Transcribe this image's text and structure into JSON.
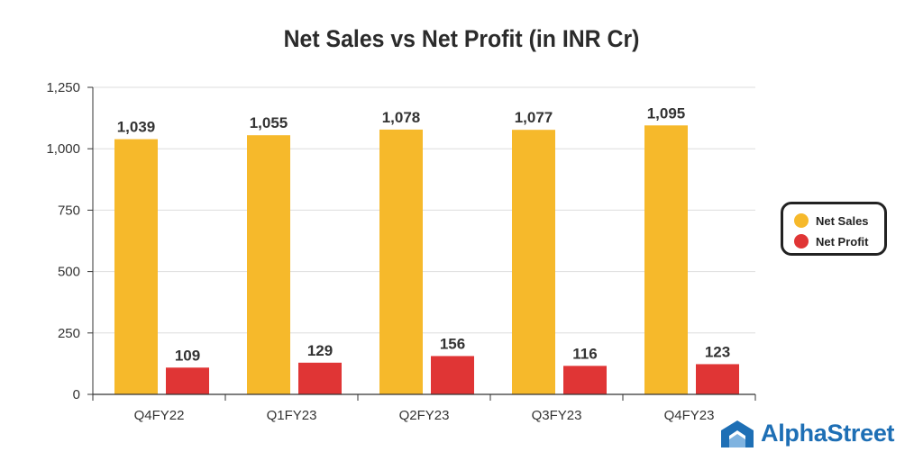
{
  "chart_data": {
    "type": "bar",
    "title": "Net Sales vs Net Profit (in INR Cr)",
    "categories": [
      "Q4FY22",
      "Q1FY23",
      "Q2FY23",
      "Q3FY23",
      "Q4FY23"
    ],
    "series": [
      {
        "name": "Net Sales",
        "values": [
          1039,
          1055,
          1078,
          1077,
          1095
        ],
        "labels": [
          "1,039",
          "1,055",
          "1,078",
          "1,077",
          "1,095"
        ],
        "color": "#F6B92B"
      },
      {
        "name": "Net Profit",
        "values": [
          109,
          129,
          156,
          116,
          123
        ],
        "labels": [
          "109",
          "129",
          "156",
          "116",
          "123"
        ],
        "color": "#E03535"
      }
    ],
    "yticks": [
      0,
      250,
      500,
      750,
      1000,
      1250
    ],
    "ytick_labels": [
      "0",
      "250",
      "500",
      "750",
      "1,000",
      "1,250"
    ],
    "ylim": [
      0,
      1250
    ],
    "grid": true,
    "legend_position": "right"
  },
  "brand": {
    "name": "AlphaStreet",
    "icon": "alphastreet-logo-icon",
    "color": "#1e6fb5"
  }
}
